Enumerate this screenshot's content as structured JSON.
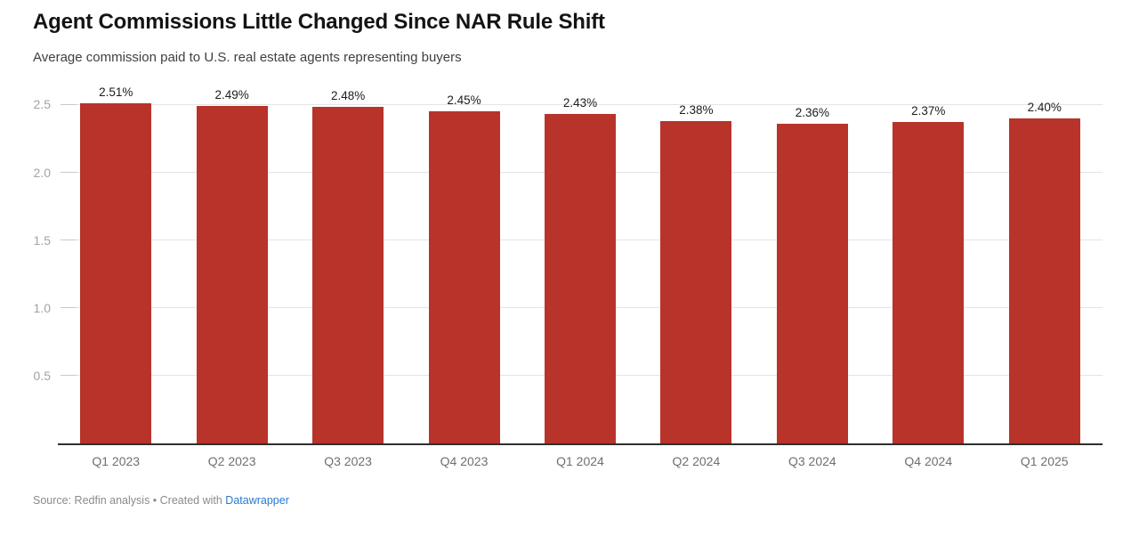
{
  "header": {
    "title": "Agent Commissions Little Changed Since NAR Rule Shift",
    "subtitle": "Average commission paid to U.S. real estate agents representing buyers"
  },
  "footer": {
    "text_before_link": "Source: Redfin analysis • Created with ",
    "link_label": "Datawrapper"
  },
  "colors": {
    "bar": "#b8332a",
    "axis_line": "#2f2f2f",
    "gridline": "#e4e4e4",
    "tick_dash": "#c9c9c9",
    "y_label": "#a3a3a3",
    "x_label": "#6f6f6f",
    "value_label": "#1c1c1c",
    "footer_text": "#8b8b8b",
    "link": "#2879cf"
  },
  "chart_data": {
    "type": "bar",
    "title": "Agent Commissions Little Changed Since NAR Rule Shift",
    "subtitle": "Average commission paid to U.S. real estate agents representing buyers",
    "categories": [
      "Q1 2023",
      "Q2 2023",
      "Q3 2023",
      "Q4 2023",
      "Q1 2024",
      "Q2 2024",
      "Q3 2024",
      "Q4 2024",
      "Q1 2025"
    ],
    "values": [
      2.51,
      2.49,
      2.48,
      2.45,
      2.43,
      2.38,
      2.36,
      2.37,
      2.4
    ],
    "value_labels": [
      "2.51%",
      "2.49%",
      "2.48%",
      "2.45%",
      "2.43%",
      "2.38%",
      "2.36%",
      "2.37%",
      "2.40%"
    ],
    "xlabel": "",
    "ylabel": "",
    "y_ticks": [
      0.5,
      1.0,
      1.5,
      2.0,
      2.5
    ],
    "y_tick_labels": [
      "0.5",
      "1.0",
      "1.5",
      "2.0",
      "2.5"
    ],
    "ylim": [
      0,
      2.68
    ],
    "grid": "horizontal",
    "legend": "none",
    "unit": "%"
  }
}
